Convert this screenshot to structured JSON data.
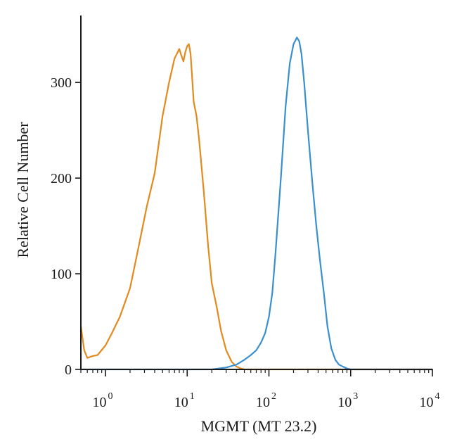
{
  "chart_data": {
    "type": "line",
    "title": "",
    "xlabel": "MGMT (MT 23.2)",
    "ylabel": "Relative Cell Number",
    "x_scale": "log",
    "xlim": [
      0.5,
      10000
    ],
    "ylim": [
      0,
      370
    ],
    "grid": false,
    "legend": "none",
    "x_ticks": [
      {
        "value": 1,
        "base": "10",
        "exp": "0"
      },
      {
        "value": 10,
        "base": "10",
        "exp": "1"
      },
      {
        "value": 100,
        "base": "10",
        "exp": "2"
      },
      {
        "value": 1000,
        "base": "10",
        "exp": "3"
      },
      {
        "value": 10000,
        "base": "10",
        "exp": "4"
      }
    ],
    "y_ticks": [
      {
        "value": 0,
        "label": "0"
      },
      {
        "value": 100,
        "label": "100"
      },
      {
        "value": 200,
        "label": "200"
      },
      {
        "value": 300,
        "label": "300"
      }
    ],
    "series": [
      {
        "color": "#E38A1E",
        "x": [
          0.5,
          0.55,
          0.6,
          0.7,
          0.8,
          1.0,
          1.2,
          1.5,
          2.0,
          2.5,
          3.2,
          4.0,
          5.0,
          6.0,
          7.0,
          8.0,
          8.5,
          9.0,
          9.5,
          10.0,
          10.5,
          11.0,
          11.5,
          12.0,
          13.0,
          14.0,
          16.0,
          18.0,
          20.0,
          23.0,
          26.0,
          30.0,
          35.0,
          40.0,
          45.0,
          50.0,
          60.0,
          100.0,
          1000.0,
          10000.0
        ],
        "values": [
          45,
          20,
          12,
          14,
          15,
          25,
          38,
          55,
          85,
          125,
          170,
          205,
          265,
          300,
          325,
          335,
          328,
          322,
          332,
          338,
          340,
          330,
          305,
          280,
          265,
          240,
          185,
          130,
          90,
          65,
          40,
          20,
          8,
          3,
          1,
          0,
          0,
          0,
          0,
          0
        ]
      },
      {
        "color": "#3A8FD0",
        "x": [
          0.5,
          20.0,
          30.0,
          40.0,
          50.0,
          60.0,
          70.0,
          80.0,
          90.0,
          100.0,
          110.0,
          120.0,
          140.0,
          160.0,
          180.0,
          200.0,
          220.0,
          235.0,
          250.0,
          270.0,
          300.0,
          340.0,
          380.0,
          420.0,
          470.0,
          520.0,
          580.0,
          650.0,
          720.0,
          800.0,
          900.0,
          1000.0,
          1200.0,
          10000.0
        ],
        "values": [
          0,
          0,
          2,
          5,
          10,
          15,
          20,
          28,
          38,
          55,
          80,
          120,
          200,
          275,
          320,
          340,
          347,
          343,
          330,
          300,
          250,
          195,
          150,
          115,
          80,
          45,
          22,
          10,
          5,
          3,
          1,
          0,
          0,
          0
        ]
      }
    ]
  }
}
